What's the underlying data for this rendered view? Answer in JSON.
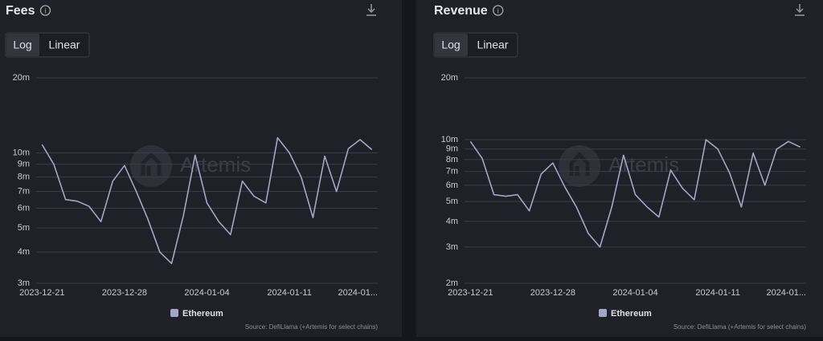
{
  "chart_data": [
    {
      "type": "line",
      "title": "Fees",
      "buttons": [
        "Log",
        "Linear"
      ],
      "active_button": "Log",
      "log_scale": true,
      "grid": true,
      "watermark": "Artemis",
      "source": "Source: DefiLlama (+Artemis for select chains)",
      "categories": [
        "2023-12-21",
        null,
        null,
        null,
        null,
        null,
        null,
        "2023-12-28",
        null,
        null,
        null,
        null,
        null,
        null,
        "2024-01-04",
        null,
        null,
        null,
        null,
        null,
        null,
        "2024-01-11",
        null,
        null,
        null,
        null,
        null,
        null,
        "2024-01..."
      ],
      "series": [
        {
          "name": "Ethereum",
          "color": "#a3a6c4",
          "values": [
            10800000,
            9000000,
            6500000,
            6400000,
            6100000,
            5300000,
            7700000,
            8900000,
            7000000,
            5400000,
            4000000,
            3600000,
            5600000,
            9800000,
            6300000,
            5300000,
            4700000,
            7700000,
            6700000,
            6300000,
            11500000,
            10000000,
            8000000,
            5500000,
            9700000,
            7000000,
            10400000,
            11300000,
            10300000
          ]
        }
      ],
      "ylim": [
        3000000,
        20000000
      ],
      "yticks": [
        {
          "value": 3000000,
          "label": "3m"
        },
        {
          "value": 4000000,
          "label": "4m"
        },
        {
          "value": 5000000,
          "label": "5m"
        },
        {
          "value": 6000000,
          "label": "6m"
        },
        {
          "value": 7000000,
          "label": "7m"
        },
        {
          "value": 8000000,
          "label": "8m"
        },
        {
          "value": 9000000,
          "label": "9m"
        },
        {
          "value": 10000000,
          "label": "10m"
        },
        {
          "value": 20000000,
          "label": "20m"
        }
      ]
    },
    {
      "type": "line",
      "title": "Revenue",
      "buttons": [
        "Log",
        "Linear"
      ],
      "active_button": "Log",
      "log_scale": true,
      "grid": true,
      "watermark": "Artemis",
      "source": "Source: DefiLlama (+Artemis for select chains)",
      "categories": [
        "2023-12-21",
        null,
        null,
        null,
        null,
        null,
        null,
        "2023-12-28",
        null,
        null,
        null,
        null,
        null,
        null,
        "2024-01-04",
        null,
        null,
        null,
        null,
        null,
        null,
        "2024-01-11",
        null,
        null,
        null,
        null,
        null,
        null,
        "2024-01..."
      ],
      "series": [
        {
          "name": "Ethereum",
          "color": "#a3a6c4",
          "values": [
            9800000,
            8100000,
            5400000,
            5300000,
            5400000,
            4500000,
            6800000,
            7700000,
            5900000,
            4700000,
            3500000,
            3000000,
            4700000,
            8400000,
            5400000,
            4700000,
            4200000,
            7100000,
            5800000,
            5100000,
            10000000,
            9000000,
            6900000,
            4700000,
            8600000,
            6000000,
            9000000,
            9800000,
            9200000
          ]
        }
      ],
      "ylim": [
        2000000,
        20000000
      ],
      "yticks": [
        {
          "value": 2000000,
          "label": "2m"
        },
        {
          "value": 3000000,
          "label": "3m"
        },
        {
          "value": 4000000,
          "label": "4m"
        },
        {
          "value": 5000000,
          "label": "5m"
        },
        {
          "value": 6000000,
          "label": "6m"
        },
        {
          "value": 7000000,
          "label": "7m"
        },
        {
          "value": 8000000,
          "label": "8m"
        },
        {
          "value": 9000000,
          "label": "9m"
        },
        {
          "value": 10000000,
          "label": "10m"
        },
        {
          "value": 20000000,
          "label": "20m"
        }
      ]
    }
  ]
}
